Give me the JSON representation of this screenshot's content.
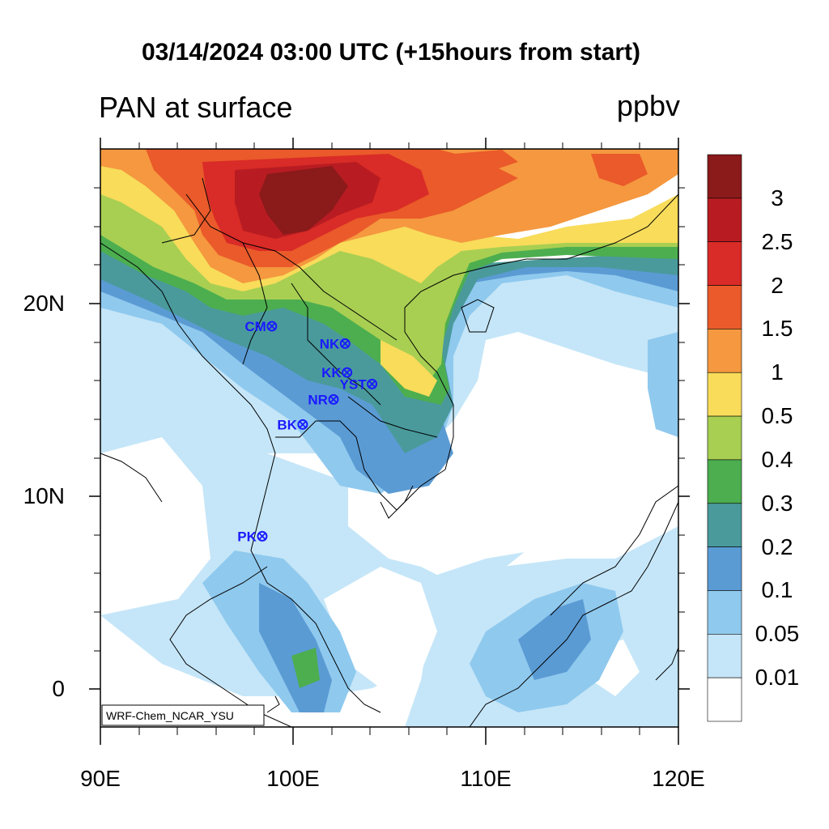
{
  "title": "03/14/2024 03:00 UTC (+15hours from start)",
  "subtitle": "PAN at surface",
  "units": "ppbv",
  "credit": "WRF-Chem_NCAR_YSU",
  "axes": {
    "lat_labels": [
      "20N",
      "10N",
      "0"
    ],
    "lat_values": [
      20,
      10,
      0
    ],
    "lon_labels": [
      "90E",
      "100E",
      "110E",
      "120E"
    ],
    "lon_values": [
      90,
      100,
      110,
      120
    ],
    "lon_range": [
      90,
      120
    ],
    "lat_range": [
      -2,
      28
    ]
  },
  "colorbar": {
    "labels": [
      "3",
      "2.5",
      "2",
      "1.5",
      "1",
      "0.5",
      "0.4",
      "0.3",
      "0.2",
      "0.1",
      "0.05",
      "0.01"
    ],
    "colors": [
      "#8b1a1a",
      "#b81c22",
      "#d92b27",
      "#ea5a2a",
      "#f5983f",
      "#f8dc5a",
      "#a8cf52",
      "#4cae4f",
      "#4a9a9c",
      "#5b9bd4",
      "#8fc9ee",
      "#c5e6f8",
      "#ffffff"
    ]
  },
  "stations": [
    {
      "name": "CM",
      "lon": 98.9,
      "lat": 18.8
    },
    {
      "name": "NK",
      "lon": 102.7,
      "lat": 17.9
    },
    {
      "name": "KK",
      "lon": 102.8,
      "lat": 16.4
    },
    {
      "name": "YST",
      "lon": 104.1,
      "lat": 15.8
    },
    {
      "name": "NR",
      "lon": 102.1,
      "lat": 15.0
    },
    {
      "name": "BK",
      "lon": 100.5,
      "lat": 13.7
    },
    {
      "name": "PK",
      "lon": 98.4,
      "lat": 7.9
    }
  ]
}
